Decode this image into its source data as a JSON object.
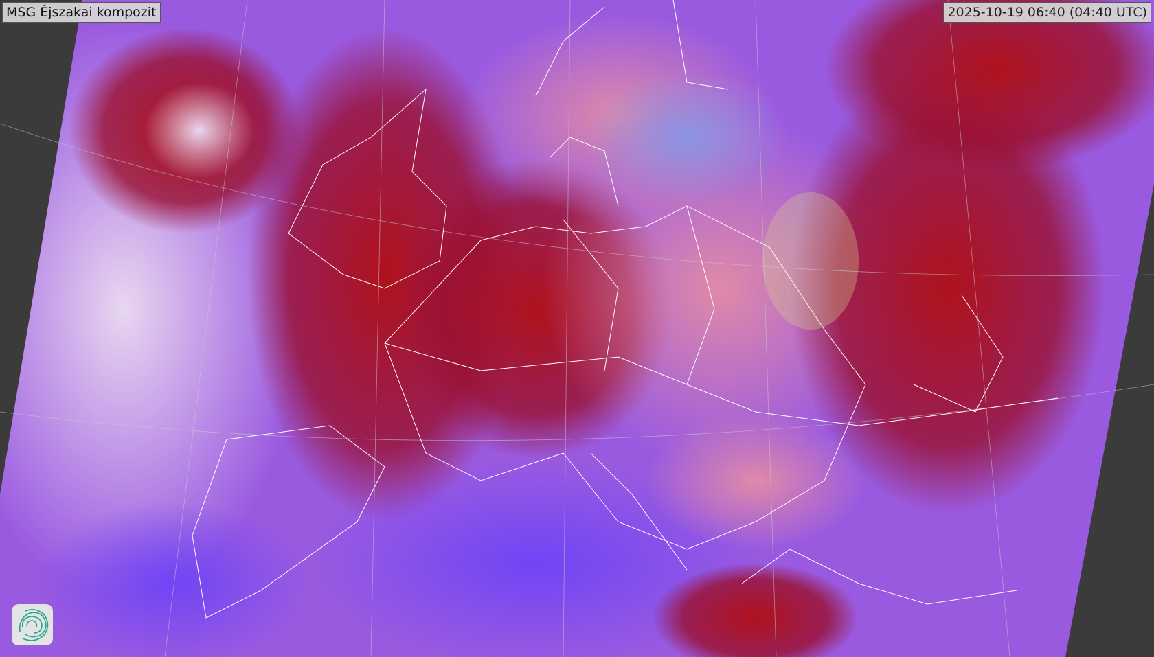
{
  "title": "MSG Éjszakai kompozit",
  "timestamp": "2025-10-19 06:40 (04:40 UTC)",
  "logo": {
    "icon": "spiral-logo-icon",
    "color": "#1fa88f"
  },
  "map": {
    "background_color": "#3b3b3b",
    "colors": {
      "cloud_red": "#a0101e",
      "sea_purple": "#7a4cf0",
      "land_pink": "#d87aa8",
      "low_cloud_white": "#d9c8ee",
      "coastline": "#ffffff"
    }
  }
}
